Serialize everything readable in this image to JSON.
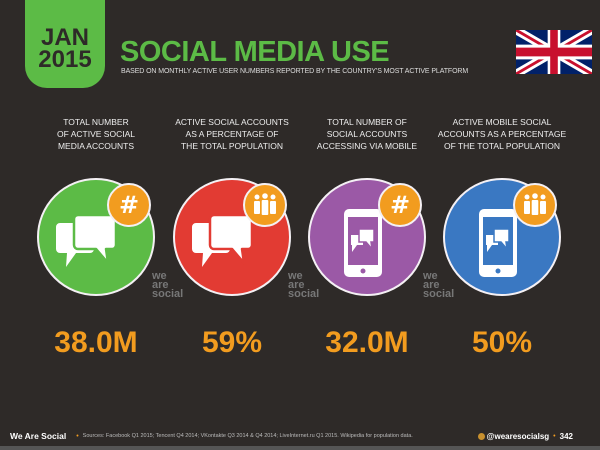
{
  "header": {
    "month": "JAN",
    "year": "2015",
    "title": "SOCIAL MEDIA USE",
    "subtitle": "BASED ON MONTHLY ACTIVE USER NUMBERS REPORTED BY THE COUNTRY'S MOST ACTIVE PLATFORM",
    "flag": "united-kingdom-flag"
  },
  "colors": {
    "green": "#5cbb46",
    "red": "#e23b33",
    "purple": "#9b59a6",
    "blue": "#3a78c2",
    "orange": "#f29c1f",
    "background": "#2e2a28"
  },
  "stats": [
    {
      "label": "TOTAL NUMBER\nOF ACTIVE SOCIAL\nMEDIA ACCOUNTS",
      "value": "38.0M",
      "icon": "chat-bubbles-icon",
      "badge": "hash-icon",
      "color": "#5cbb46"
    },
    {
      "label": "ACTIVE SOCIAL ACCOUNTS\nAS A PERCENTAGE OF\nTHE TOTAL POPULATION",
      "value": "59%",
      "icon": "chat-bubbles-icon",
      "badge": "people-icon",
      "color": "#e23b33"
    },
    {
      "label": "TOTAL NUMBER OF\nSOCIAL ACCOUNTS\nACCESSING VIA MOBILE",
      "value": "32.0M",
      "icon": "mobile-chat-icon",
      "badge": "hash-icon",
      "color": "#9b59a6"
    },
    {
      "label": "ACTIVE MOBILE SOCIAL\nACCOUNTS AS A PERCENTAGE\nOF THE TOTAL POPULATION",
      "value": "50%",
      "icon": "mobile-chat-icon",
      "badge": "people-icon",
      "color": "#3a78c2"
    }
  ],
  "watermark": "we\nare\nsocial",
  "footer": {
    "brand": "We Are Social",
    "sources": "Sources: Facebook Q1 2015; Tencent Q4 2014; VKontakte Q3 2014 & Q4 2014; LiveInternet.ru Q1 2015. Wikipedia for population data.",
    "handle": "@wearesocialsg",
    "page": "342"
  }
}
